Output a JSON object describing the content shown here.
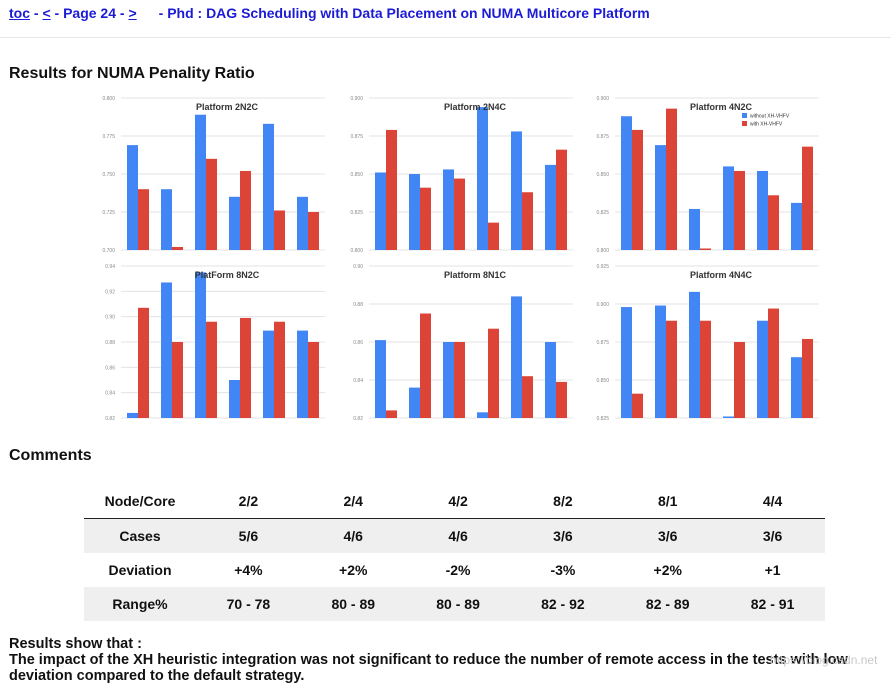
{
  "nav": {
    "toc": "toc",
    "sep1": " - ",
    "prev": "<",
    "sep2": " - Page 24 - ",
    "next": ">",
    "title": "- Phd : DAG Scheduling with Data Placement on NUMA Multicore Platform"
  },
  "sections": {
    "results_heading": "Results for NUMA Penality Ratio",
    "comments_heading": "Comments"
  },
  "legend": {
    "without": "without XH-VHFV",
    "with": "with XH-VHFV"
  },
  "colors": {
    "without": "#4285f4",
    "with": "#db4437",
    "grid": "#e3e3e3",
    "axis": "#888888"
  },
  "chart_data": [
    {
      "type": "bar",
      "title": "Platform 2N2C",
      "ylim": [
        0.7,
        0.8
      ],
      "yticks": [
        "0.800",
        "0.775",
        "0.750",
        "0.725",
        "0.700"
      ],
      "series": [
        {
          "name": "without XH-VHFV",
          "values": [
            0.769,
            0.74,
            0.789,
            0.735,
            0.783,
            0.735
          ]
        },
        {
          "name": "with XH-VHFV",
          "values": [
            0.74,
            0.702,
            0.76,
            0.752,
            0.726,
            0.725
          ]
        }
      ]
    },
    {
      "type": "bar",
      "title": "Platform 2N4C",
      "ylim": [
        0.8,
        0.9
      ],
      "yticks": [
        "0.900",
        "0.875",
        "0.850",
        "0.825",
        "0.800"
      ],
      "series": [
        {
          "name": "without XH-VHFV",
          "values": [
            0.851,
            0.85,
            0.853,
            0.894,
            0.878,
            0.856
          ]
        },
        {
          "name": "with XH-VHFV",
          "values": [
            0.879,
            0.841,
            0.847,
            0.818,
            0.838,
            0.866
          ]
        }
      ]
    },
    {
      "type": "bar",
      "title": "Platform 4N2C",
      "ylim": [
        0.8,
        0.9
      ],
      "yticks": [
        "0.900",
        "0.875",
        "0.850",
        "0.825",
        "0.800"
      ],
      "legend_position": "top-right",
      "series": [
        {
          "name": "without XH-VHFV",
          "values": [
            0.888,
            0.869,
            0.827,
            0.855,
            0.852,
            0.831
          ]
        },
        {
          "name": "with XH-VHFV",
          "values": [
            0.879,
            0.893,
            0.801,
            0.852,
            0.836,
            0.868
          ]
        }
      ]
    },
    {
      "type": "bar",
      "title": "PlatForm 8N2C",
      "ylim": [
        0.82,
        0.94
      ],
      "yticks": [
        "0.94",
        "0.92",
        "0.90",
        "0.88",
        "0.86",
        "0.84",
        "0.82"
      ],
      "series": [
        {
          "name": "without XH-VHFV",
          "values": [
            0.824,
            0.927,
            0.935,
            0.85,
            0.889,
            0.889
          ]
        },
        {
          "name": "with XH-VHFV",
          "values": [
            0.907,
            0.88,
            0.896,
            0.899,
            0.896,
            0.88
          ]
        }
      ]
    },
    {
      "type": "bar",
      "title": "Platform 8N1C",
      "ylim": [
        0.82,
        0.9
      ],
      "yticks": [
        "0.90",
        "0.88",
        "0.86",
        "0.84",
        "0.82"
      ],
      "series": [
        {
          "name": "without XH-VHFV",
          "values": [
            0.861,
            0.836,
            0.86,
            0.823,
            0.884,
            0.86
          ]
        },
        {
          "name": "with XH-VHFV",
          "values": [
            0.824,
            0.875,
            0.86,
            0.867,
            0.842,
            0.839
          ]
        }
      ]
    },
    {
      "type": "bar",
      "title": "Platform 4N4C",
      "ylim": [
        0.825,
        0.925
      ],
      "yticks": [
        "0.925",
        "0.900",
        "0.875",
        "0.850",
        "0.825"
      ],
      "series": [
        {
          "name": "without XH-VHFV",
          "values": [
            0.898,
            0.899,
            0.908,
            0.826,
            0.889,
            0.865
          ]
        },
        {
          "name": "with XH-VHFV",
          "values": [
            0.841,
            0.889,
            0.889,
            0.875,
            0.897,
            0.877
          ]
        }
      ]
    }
  ],
  "table": {
    "headers": [
      "Node/Core",
      "2/2",
      "2/4",
      "4/2",
      "8/2",
      "8/1",
      "4/4"
    ],
    "rows": [
      [
        "Cases",
        "5/6",
        "4/6",
        "4/6",
        "3/6",
        "3/6",
        "3/6"
      ],
      [
        "Deviation",
        "+4%",
        "+2%",
        "-2%",
        "-3%",
        "+2%",
        "+1"
      ],
      [
        "Range%",
        "70 - 78",
        "80 - 89",
        "80 - 89",
        "82 - 92",
        "82 - 89",
        "82 - 91"
      ]
    ]
  },
  "footer": {
    "line1": "Results show that :",
    "line2": "The impact of the XH heuristic integration was not significant to reduce the number of remote access in the tests with low deviation compared to the default strategy."
  },
  "watermark": "https://blog.csdn.net"
}
